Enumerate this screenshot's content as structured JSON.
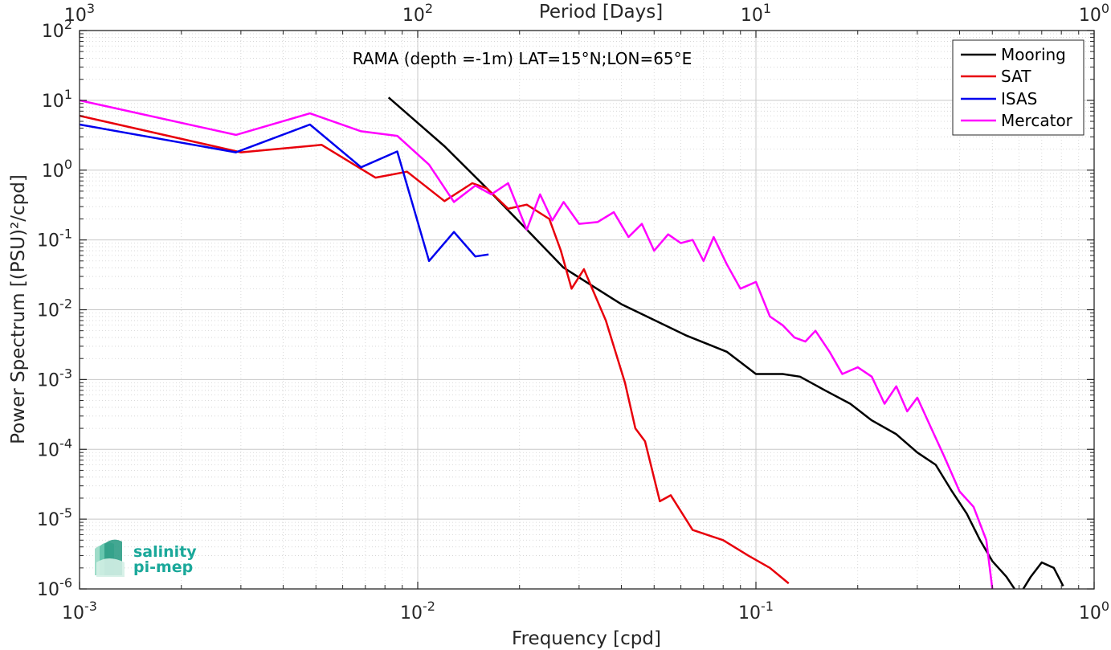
{
  "chart_data": {
    "type": "line",
    "title": "RAMA (depth =-1m) LAT=15°N;LON=65°E",
    "xlabel": "Frequency [cpd]",
    "ylabel": "Power Spectrum [(PSU)²/cpd]",
    "x2label": "Period [Days]",
    "x_scale": "log",
    "y_scale": "log",
    "xlim": [
      0.001,
      1
    ],
    "ylim": [
      1e-06,
      100
    ],
    "grid": true,
    "legend_position": "top-right",
    "x_ticks": [
      {
        "base": "10",
        "exp": "-3"
      },
      {
        "base": "10",
        "exp": "-2"
      },
      {
        "base": "10",
        "exp": "-1"
      },
      {
        "base": "10",
        "exp": "0"
      }
    ],
    "x2_ticks": [
      {
        "base": "10",
        "exp": "3"
      },
      {
        "base": "10",
        "exp": "2"
      },
      {
        "base": "10",
        "exp": "1"
      },
      {
        "base": "10",
        "exp": "0"
      }
    ],
    "y_ticks": [
      {
        "base": "10",
        "exp": "-6"
      },
      {
        "base": "10",
        "exp": "-5"
      },
      {
        "base": "10",
        "exp": "-4"
      },
      {
        "base": "10",
        "exp": "-3"
      },
      {
        "base": "10",
        "exp": "-2"
      },
      {
        "base": "10",
        "exp": "-1"
      },
      {
        "base": "10",
        "exp": "0"
      },
      {
        "base": "10",
        "exp": "1"
      },
      {
        "base": "10",
        "exp": "2"
      }
    ],
    "series": [
      {
        "name": "Mooring",
        "color": "#000000",
        "x": [
          0.0082,
          0.012,
          0.016,
          0.02,
          0.027,
          0.04,
          0.062,
          0.082,
          0.1,
          0.12,
          0.135,
          0.16,
          0.19,
          0.22,
          0.26,
          0.3,
          0.34,
          0.38,
          0.42,
          0.46,
          0.5,
          0.55,
          0.6,
          0.65,
          0.7,
          0.76,
          0.81
        ],
        "y": [
          11,
          2.2,
          0.55,
          0.18,
          0.04,
          0.012,
          0.0043,
          0.0025,
          0.0012,
          0.0012,
          0.0011,
          0.0007,
          0.00045,
          0.00026,
          0.000165,
          9e-05,
          6e-05,
          2.5e-05,
          1.2e-05,
          5e-06,
          2.5e-06,
          1.5e-06,
          8e-07,
          1.5e-06,
          2.4e-06,
          2e-06,
          1.1e-06
        ]
      },
      {
        "name": "SAT",
        "color": "#e8000b",
        "x": [
          0.001,
          0.003,
          0.0052,
          0.0075,
          0.0093,
          0.012,
          0.0145,
          0.016,
          0.0185,
          0.021,
          0.0245,
          0.0265,
          0.0285,
          0.031,
          0.036,
          0.041,
          0.044,
          0.047,
          0.052,
          0.056,
          0.065,
          0.08,
          0.095,
          0.11,
          0.125
        ],
        "y": [
          6,
          1.8,
          2.3,
          0.78,
          0.95,
          0.36,
          0.65,
          0.55,
          0.28,
          0.32,
          0.2,
          0.07,
          0.02,
          0.038,
          0.007,
          0.0009,
          0.0002,
          0.00013,
          1.8e-05,
          2.2e-05,
          7e-06,
          5e-06,
          3e-06,
          2e-06,
          1.2e-06
        ]
      },
      {
        "name": "ISAS",
        "color": "#0000ee",
        "x": [
          0.001,
          0.0029,
          0.0048,
          0.0068,
          0.0087,
          0.0108,
          0.0128,
          0.0148,
          0.0162
        ],
        "y": [
          4.5,
          1.8,
          4.5,
          1.1,
          1.85,
          0.05,
          0.13,
          0.058,
          0.062
        ]
      },
      {
        "name": "Mercator",
        "color": "#ff00ff",
        "x": [
          0.001,
          0.0029,
          0.0048,
          0.0068,
          0.0087,
          0.0108,
          0.0128,
          0.0148,
          0.0165,
          0.0185,
          0.021,
          0.023,
          0.025,
          0.027,
          0.03,
          0.034,
          0.038,
          0.042,
          0.046,
          0.05,
          0.055,
          0.06,
          0.065,
          0.07,
          0.075,
          0.082,
          0.09,
          0.1,
          0.11,
          0.12,
          0.13,
          0.14,
          0.15,
          0.165,
          0.18,
          0.2,
          0.22,
          0.24,
          0.26,
          0.28,
          0.3,
          0.33,
          0.36,
          0.4,
          0.44,
          0.48,
          0.5
        ],
        "y": [
          10,
          3.2,
          6.5,
          3.6,
          3.1,
          1.2,
          0.35,
          0.6,
          0.45,
          0.65,
          0.14,
          0.45,
          0.19,
          0.35,
          0.17,
          0.18,
          0.25,
          0.11,
          0.17,
          0.07,
          0.12,
          0.09,
          0.1,
          0.05,
          0.11,
          0.045,
          0.02,
          0.025,
          0.008,
          0.006,
          0.004,
          0.0035,
          0.005,
          0.0025,
          0.0012,
          0.0015,
          0.0011,
          0.00045,
          0.0008,
          0.00035,
          0.00055,
          0.0002,
          8e-05,
          2.5e-05,
          1.5e-05,
          5e-06,
          1e-06
        ]
      }
    ]
  },
  "logo": {
    "line1": "salinity",
    "line2": "pi-mep"
  }
}
